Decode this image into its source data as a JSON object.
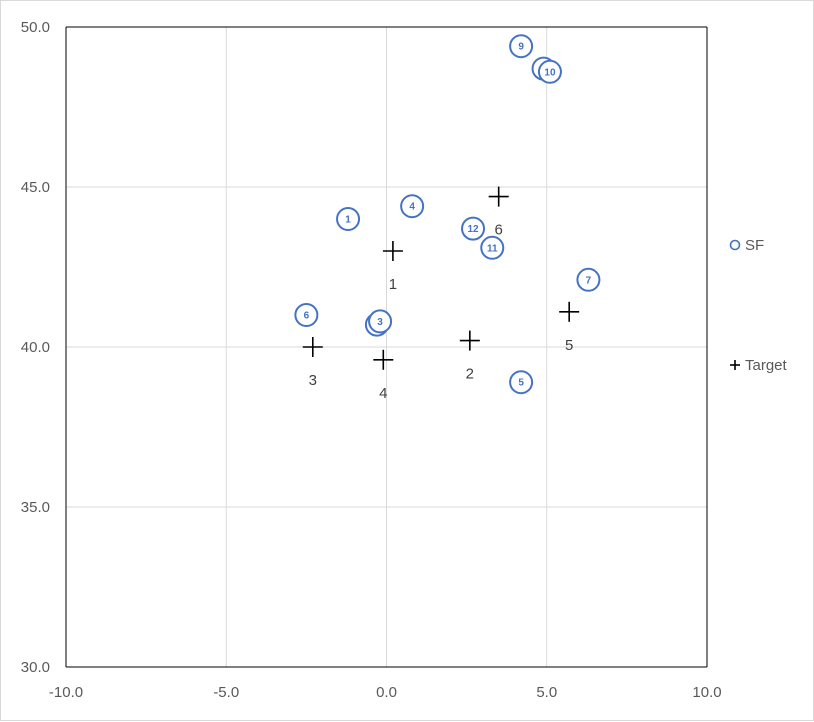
{
  "chart_data": {
    "type": "scatter",
    "xlim": [
      -10,
      10
    ],
    "ylim": [
      30,
      50
    ],
    "x_ticks": [
      "-10.0",
      "-5.0",
      "0.0",
      "5.0",
      "10.0"
    ],
    "y_ticks": [
      "30.0",
      "35.0",
      "40.0",
      "45.0",
      "50.0"
    ],
    "grid": true,
    "legend_position": "right",
    "series": [
      {
        "name": "SF",
        "marker": "circle",
        "color": "#4472c4",
        "points": [
          {
            "label": "1",
            "x": -1.2,
            "y": 44.0
          },
          {
            "label": "2",
            "x": -0.3,
            "y": 40.7
          },
          {
            "label": "3",
            "x": -0.2,
            "y": 40.8
          },
          {
            "label": "4",
            "x": 0.8,
            "y": 44.4
          },
          {
            "label": "5",
            "x": 4.2,
            "y": 38.9
          },
          {
            "label": "6",
            "x": -2.5,
            "y": 41.0
          },
          {
            "label": "7",
            "x": 6.3,
            "y": 42.1
          },
          {
            "label": "8",
            "x": 4.9,
            "y": 48.7
          },
          {
            "label": "9",
            "x": 4.2,
            "y": 49.4
          },
          {
            "label": "10",
            "x": 5.1,
            "y": 48.6
          },
          {
            "label": "11",
            "x": 3.3,
            "y": 43.1
          },
          {
            "label": "12",
            "x": 2.7,
            "y": 43.7
          }
        ]
      },
      {
        "name": "Target",
        "marker": "plus",
        "color": "#000000",
        "points": [
          {
            "label": "1",
            "x": 0.2,
            "y": 43.0
          },
          {
            "label": "2",
            "x": 2.6,
            "y": 40.2
          },
          {
            "label": "3",
            "x": -2.3,
            "y": 40.0
          },
          {
            "label": "4",
            "x": -0.1,
            "y": 39.6
          },
          {
            "label": "5",
            "x": 5.7,
            "y": 41.1
          },
          {
            "label": "6",
            "x": 3.5,
            "y": 44.7
          }
        ]
      }
    ]
  }
}
